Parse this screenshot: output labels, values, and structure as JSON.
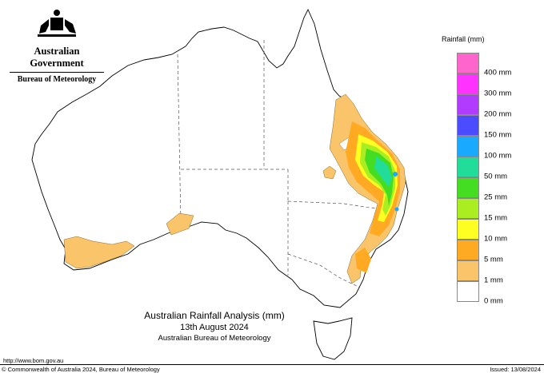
{
  "header": {
    "gov_name": "Australian Government",
    "bureau_name": "Bureau of Meteorology"
  },
  "legend": {
    "title": "Rainfall (mm)",
    "items": [
      {
        "label": "400 mm",
        "color": "#ff66cc"
      },
      {
        "label": "300 mm",
        "color": "#ff33ff"
      },
      {
        "label": "200 mm",
        "color": "#b13cff"
      },
      {
        "label": "150 mm",
        "color": "#4b4bff"
      },
      {
        "label": "100 mm",
        "color": "#19aaff"
      },
      {
        "label": "50 mm",
        "color": "#22dd99"
      },
      {
        "label": "25 mm",
        "color": "#44dd22"
      },
      {
        "label": "15 mm",
        "color": "#aaee22"
      },
      {
        "label": "10 mm",
        "color": "#ffff22"
      },
      {
        "label": "5 mm",
        "color": "#ffaa22"
      },
      {
        "label": "1 mm",
        "color": "#f9c46a"
      },
      {
        "label": "0 mm",
        "color": "#ffffff"
      }
    ]
  },
  "title": {
    "line1": "Australian Rainfall Analysis (mm)",
    "line2": "13th August 2024",
    "line3": "Australian Bureau of Meteorology"
  },
  "footer": {
    "url": "http://www.bom.gov.au",
    "copyright": "© Commonwealth of Australia 2024, Bureau of Meteorology",
    "issued": "Issued: 13/08/2024"
  }
}
